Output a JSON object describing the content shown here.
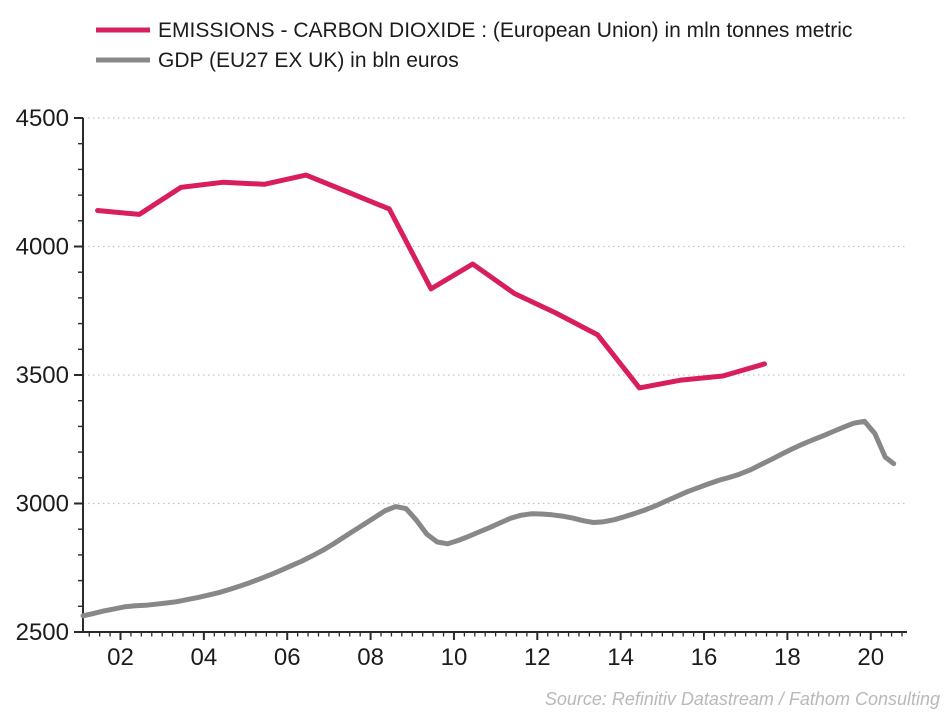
{
  "legend": {
    "items": [
      {
        "label": "EMISSIONS - CARBON DIOXIDE : (European Union) in mln tonnes metric",
        "color": "#D81E5B"
      },
      {
        "label": "GDP (EU27 EX UK) in bln euros",
        "color": "#888888"
      }
    ]
  },
  "source": "Source: Refinitiv Datastream / Fathom Consulting",
  "colors": {
    "emissions_line": "#D81E5B",
    "gdp_line": "#888888",
    "axis": "#2a2a2a",
    "gridline": "#c3c3c3",
    "tick_text": "#1c1c1c",
    "source_text": "#b9b9b9"
  },
  "chart_data": {
    "type": "line",
    "title": "",
    "xlabel": "",
    "ylabel": "",
    "xlim": [
      2001.1,
      2020.87
    ],
    "ylim": [
      2500,
      4500
    ],
    "grid": "horizontal dotted at major y ticks",
    "legend_position": "top-left",
    "ytick_major": [
      2500,
      3000,
      3500,
      4000,
      4500
    ],
    "ytick_minor_step": 100,
    "xtick_major": [
      2002,
      2004,
      2006,
      2008,
      2010,
      2012,
      2014,
      2016,
      2018,
      2020
    ],
    "xtick_labels": [
      "02",
      "04",
      "06",
      "08",
      "10",
      "12",
      "14",
      "16",
      "18",
      "20"
    ],
    "xtick_minor_step": 0.25,
    "series": [
      {
        "name": "EMISSIONS - CARBON DIOXIDE : (European Union) in mln tonnes metric",
        "color": "#D81E5B",
        "width": 5,
        "x": [
          2001.45,
          2002.45,
          2003.45,
          2004.45,
          2005.45,
          2006.45,
          2007.45,
          2008.45,
          2009.45,
          2010.45,
          2011.45,
          2012.45,
          2013.45,
          2014.45,
          2015.45,
          2016.45,
          2017.45
        ],
        "values": [
          4140,
          4125,
          4230,
          4250,
          4242,
          4278,
          4212,
          4146,
          3835,
          3932,
          3817,
          3741,
          3656,
          3450,
          3480,
          3496,
          3543
        ]
      },
      {
        "name": "GDP (EU27 EX UK) in bln euros",
        "color": "#888888",
        "width": 5,
        "x": [
          2001.1,
          2001.35,
          2001.6,
          2001.85,
          2002.1,
          2002.35,
          2002.6,
          2002.85,
          2003.1,
          2003.35,
          2003.6,
          2003.85,
          2004.1,
          2004.35,
          2004.6,
          2004.85,
          2005.1,
          2005.35,
          2005.6,
          2005.85,
          2006.1,
          2006.35,
          2006.6,
          2006.85,
          2007.1,
          2007.35,
          2007.6,
          2007.85,
          2008.1,
          2008.35,
          2008.6,
          2008.85,
          2009.1,
          2009.35,
          2009.6,
          2009.85,
          2010.1,
          2010.35,
          2010.6,
          2010.85,
          2011.1,
          2011.35,
          2011.6,
          2011.85,
          2012.1,
          2012.35,
          2012.6,
          2012.85,
          2013.1,
          2013.35,
          2013.6,
          2013.85,
          2014.1,
          2014.35,
          2014.6,
          2014.85,
          2015.1,
          2015.35,
          2015.6,
          2015.85,
          2016.1,
          2016.35,
          2016.6,
          2016.85,
          2017.1,
          2017.35,
          2017.6,
          2017.85,
          2018.1,
          2018.35,
          2018.6,
          2018.85,
          2019.1,
          2019.35,
          2019.6,
          2019.85,
          2020.1,
          2020.35,
          2020.55
        ],
        "values": [
          2563,
          2572,
          2582,
          2590,
          2598,
          2602,
          2604,
          2608,
          2613,
          2618,
          2626,
          2634,
          2643,
          2653,
          2665,
          2678,
          2692,
          2707,
          2723,
          2740,
          2758,
          2776,
          2796,
          2818,
          2842,
          2868,
          2894,
          2920,
          2946,
          2972,
          2988,
          2980,
          2935,
          2880,
          2850,
          2843,
          2856,
          2872,
          2889,
          2906,
          2924,
          2942,
          2954,
          2960,
          2959,
          2956,
          2951,
          2943,
          2933,
          2926,
          2929,
          2937,
          2949,
          2962,
          2976,
          2992,
          3010,
          3028,
          3046,
          3061,
          3076,
          3090,
          3101,
          3114,
          3130,
          3150,
          3170,
          3191,
          3211,
          3230,
          3247,
          3263,
          3280,
          3297,
          3313,
          3320,
          3272,
          3180,
          3155
        ]
      }
    ]
  }
}
